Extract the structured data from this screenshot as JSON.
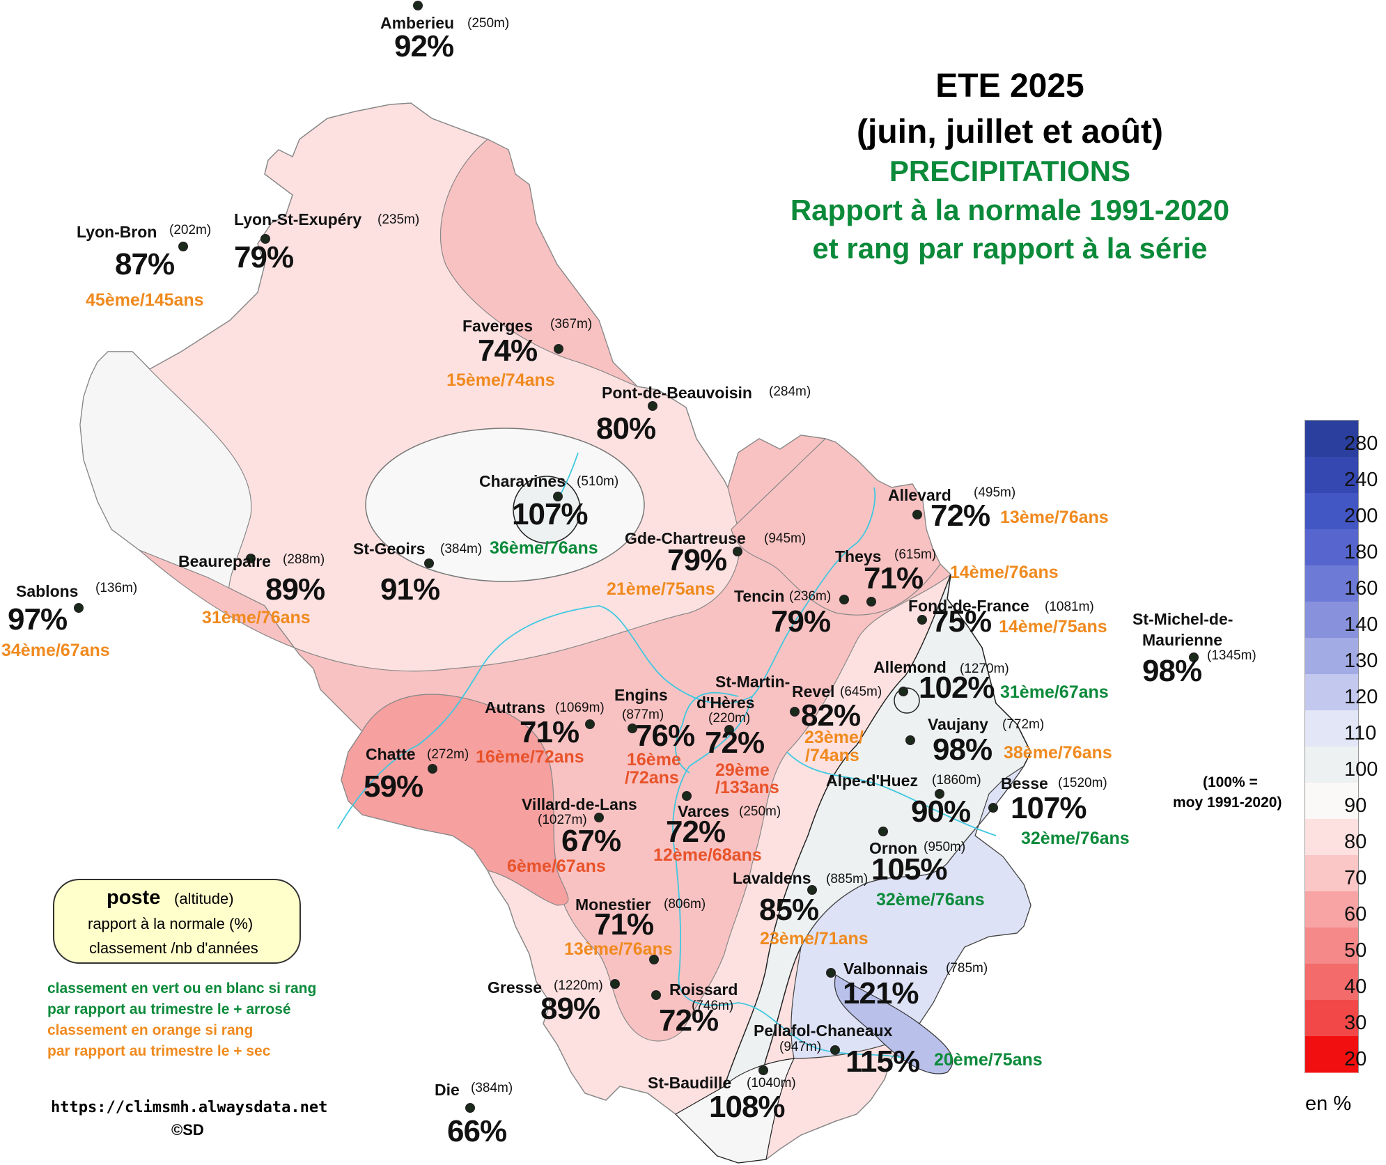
{
  "title": {
    "line1": "ETE 2025",
    "line2": "(juin, juillet et août)",
    "line3": "PRECIPITATIONS",
    "line4": "Rapport à la normale 1991-2020",
    "line5": "et rang par rapport à la série"
  },
  "stations": [
    {
      "id": "amberieu",
      "name": "Amberieu",
      "alt": "(250m)",
      "pct": "92%",
      "rank": ""
    },
    {
      "id": "lyon-bron",
      "name": "Lyon-Bron",
      "alt": "(202m)",
      "pct": "87%",
      "rank": "45ème/145ans"
    },
    {
      "id": "lyon-st-exupery",
      "name": "Lyon-St-Exupéry",
      "alt": "(235m)",
      "pct": "79%",
      "rank": ""
    },
    {
      "id": "faverges",
      "name": "Faverges",
      "alt": "(367m)",
      "pct": "74%",
      "rank": "15ème/74ans"
    },
    {
      "id": "pont-de-beauvoisin",
      "name": "Pont-de-Beauvoisin",
      "alt": "(284m)",
      "pct": "80%",
      "rank": ""
    },
    {
      "id": "charavines",
      "name": "Charavines",
      "alt": "(510m)",
      "pct": "107%",
      "rank": "36ème/76ans"
    },
    {
      "id": "st-geoirs",
      "name": "St-Geoirs",
      "alt": "(384m)",
      "pct": "91%",
      "rank": ""
    },
    {
      "id": "beaurepaire",
      "name": "Beaurepaire",
      "alt": "(288m)",
      "pct": "89%",
      "rank": "31ème/76ans"
    },
    {
      "id": "sablons",
      "name": "Sablons",
      "alt": "(136m)",
      "pct": "97%",
      "rank": "34ème/67ans"
    },
    {
      "id": "gde-chartreuse",
      "name": "Gde-Chartreuse",
      "alt": "(945m)",
      "pct": "79%",
      "rank": "21ème/75ans"
    },
    {
      "id": "allevard",
      "name": "Allevard",
      "alt": "(495m)",
      "pct": "72%",
      "rank": "13ème/76ans"
    },
    {
      "id": "theys",
      "name": "Theys",
      "alt": "(615m)",
      "pct": "71%",
      "rank": "14ème/76ans"
    },
    {
      "id": "tencin",
      "name": "Tencin",
      "alt": "(236m)",
      "pct": "79%",
      "rank": ""
    },
    {
      "id": "fond-de-france",
      "name": "Fond-de-France",
      "alt": "(1081m)",
      "pct": "75%",
      "rank": "14ème/75ans"
    },
    {
      "id": "st-michel",
      "name1": "St-Michel-de-",
      "name2": "Maurienne",
      "alt": "(1345m)",
      "pct": "98%",
      "rank": ""
    },
    {
      "id": "allemond",
      "name": "Allemond",
      "alt": "(1270m)",
      "pct": "102%",
      "rank": "31ème/67ans"
    },
    {
      "id": "revel",
      "name": "Revel",
      "alt": "(645m)",
      "pct": "82%",
      "rank1": "23ème/",
      "rank2": "/74ans"
    },
    {
      "id": "st-martin",
      "name1": "St-Martin-",
      "name2": "d'Hères",
      "alt": "(220m)",
      "pct": "72%",
      "rank1": "29ème",
      "rank2": "/133ans"
    },
    {
      "id": "engins",
      "name": "Engins",
      "alt": "(877m)",
      "pct": "76%",
      "rank1": "16ème",
      "rank2": "/72ans"
    },
    {
      "id": "autrans",
      "name": "Autrans",
      "alt": "(1069m)",
      "pct": "71%",
      "rank": "16ème/72ans"
    },
    {
      "id": "chatte",
      "name": "Chatte",
      "alt": "(272m)",
      "pct": "59%",
      "rank": ""
    },
    {
      "id": "vaujany",
      "name": "Vaujany",
      "alt": "(772m)",
      "pct": "98%",
      "rank": "38ème/76ans"
    },
    {
      "id": "alpe-dhuez",
      "name": "Alpe-d'Huez",
      "alt": "(1860m)",
      "pct": "90%",
      "rank": ""
    },
    {
      "id": "besse",
      "name": "Besse",
      "alt": "(1520m)",
      "pct": "107%",
      "rank": "32ème/76ans"
    },
    {
      "id": "ornon",
      "name": "Ornon",
      "alt": "(950m)",
      "pct": "105%",
      "rank": "32ème/76ans"
    },
    {
      "id": "villard-de-lans",
      "name": "Villard-de-Lans",
      "alt": "(1027m)",
      "pct": "67%",
      "rank": "6ème/67ans"
    },
    {
      "id": "varces",
      "name": "Varces",
      "alt": "(250m)",
      "pct": "72%",
      "rank": "12ème/68ans"
    },
    {
      "id": "lavaldens",
      "name": "Lavaldens",
      "alt": "(885m)",
      "pct": "85%",
      "rank": "23ème/71ans"
    },
    {
      "id": "monestier",
      "name": "Monestier",
      "alt": "(806m)",
      "pct": "71%",
      "rank": "13ème/76ans"
    },
    {
      "id": "gresse",
      "name": "Gresse",
      "alt": "(1220m)",
      "pct": "89%",
      "rank": ""
    },
    {
      "id": "roissard",
      "name": "Roissard",
      "alt": "(746m)",
      "pct": "72%",
      "rank": ""
    },
    {
      "id": "valbonnais",
      "name": "Valbonnais",
      "alt": "(785m)",
      "pct": "121%",
      "rank": ""
    },
    {
      "id": "pellafol",
      "name": "Pellafol-Chaneaux",
      "alt": "(947m)",
      "pct": "115%",
      "rank": "20ème/75ans"
    },
    {
      "id": "st-baudille",
      "name": "St-Baudille",
      "alt": "(1040m)",
      "pct": "108%",
      "rank": ""
    },
    {
      "id": "die",
      "name": "Die",
      "alt": "(384m)",
      "pct": "66%",
      "rank": ""
    }
  ],
  "legend": {
    "poste": "poste",
    "altitude": "(altitude)",
    "line2": "rapport à la normale (%)",
    "line3": "classement /nb d'années",
    "note_green1": "classement en vert ou en blanc si rang",
    "note_green2": "par rapport au trimestre le + arrosé",
    "note_orange1": "classement en orange si rang",
    "note_orange2": "par rapport au trimestre le + sec",
    "url": "https://climsmh.alwaysdata.net",
    "copyright": "©SD"
  },
  "scale": {
    "labels": [
      "280",
      "240",
      "200",
      "180",
      "160",
      "140",
      "130",
      "120",
      "110",
      "100",
      "90",
      "80",
      "70",
      "60",
      "50",
      "40",
      "30",
      "20"
    ],
    "colors": [
      "#2a3f9e",
      "#3547b0",
      "#4256c4",
      "#5766cf",
      "#6e7bd6",
      "#8892dc",
      "#a3abe4",
      "#c2c8ee",
      "#e2e6f6",
      "#eef1f1",
      "#fbf9f7",
      "#fde1e1",
      "#fbc6c6",
      "#f8a4a4",
      "#f58888",
      "#f36b6b",
      "#f24848",
      "#f20f0f"
    ],
    "note1": "(100% =",
    "note2": "moy 1991-2020)",
    "unit": "en %"
  }
}
